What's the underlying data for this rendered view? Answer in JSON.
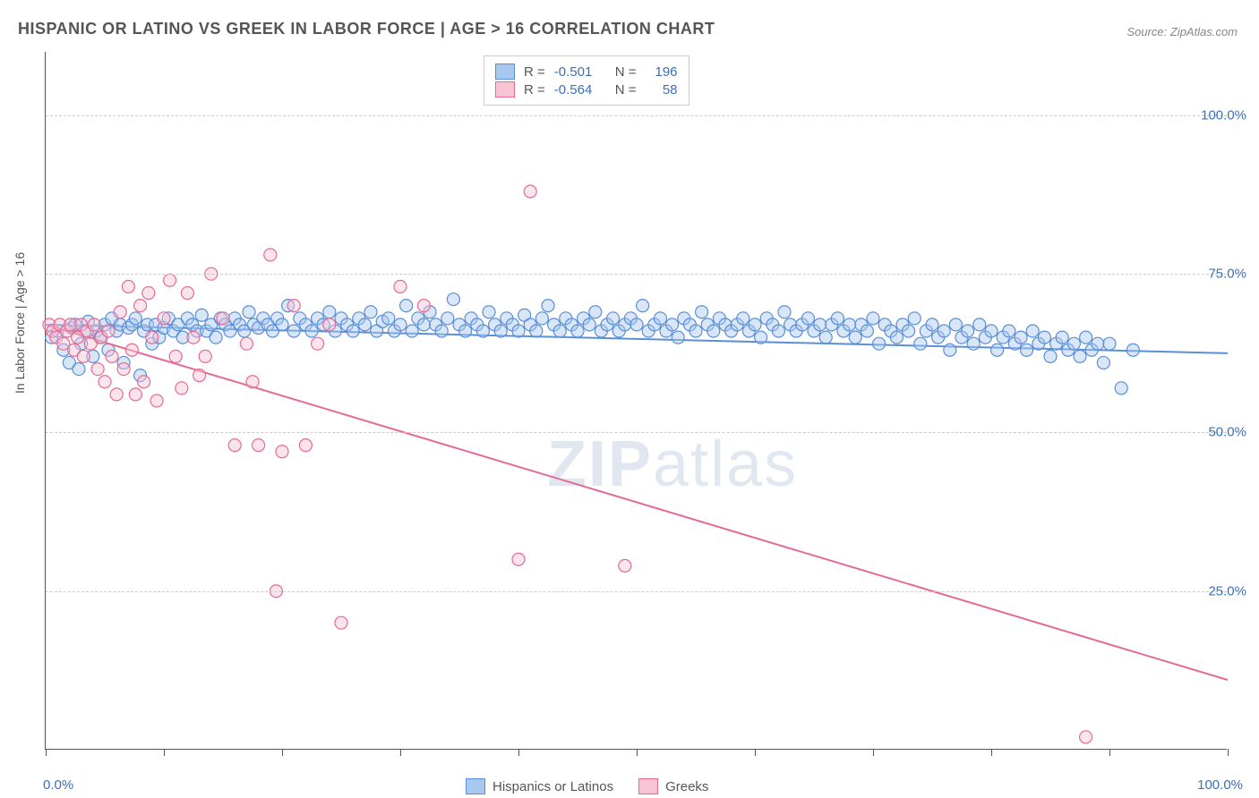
{
  "title": "HISPANIC OR LATINO VS GREEK IN LABOR FORCE | AGE > 16 CORRELATION CHART",
  "source": "Source: ZipAtlas.com",
  "ylabel": "In Labor Force | Age > 16",
  "watermark_bold": "ZIP",
  "watermark_rest": "atlas",
  "chart": {
    "type": "scatter-with-regression",
    "xlim": [
      0,
      100
    ],
    "ylim": [
      0,
      110
    ],
    "xtick_labels": {
      "0": "0.0%",
      "100": "100.0%"
    },
    "ytick_labels": {
      "25": "25.0%",
      "50": "50.0%",
      "75": "75.0%",
      "100": "100.0%"
    },
    "xtick_positions": [
      0,
      10,
      20,
      30,
      40,
      50,
      60,
      70,
      80,
      90,
      100
    ],
    "grid_y_positions": [
      25,
      50,
      75,
      100
    ],
    "grid_color": "#cccccc",
    "background_color": "#ffffff",
    "axis_color": "#555555",
    "marker_radius": 7,
    "marker_opacity": 0.45,
    "line_width": 2,
    "series": [
      {
        "name": "Hispanics or Latinos",
        "color_fill": "#a8c8f0",
        "color_stroke": "#5a8fd6",
        "R": "-0.501",
        "N": "196",
        "regression": {
          "x0": 0,
          "y0": 67,
          "x1": 100,
          "y1": 62.5
        },
        "points": [
          [
            0.5,
            65
          ],
          [
            1,
            66
          ],
          [
            1.5,
            63
          ],
          [
            2,
            61
          ],
          [
            2.2,
            66.5
          ],
          [
            2.5,
            67
          ],
          [
            2.8,
            60
          ],
          [
            3,
            64
          ],
          [
            3.3,
            66
          ],
          [
            3.6,
            67.5
          ],
          [
            4,
            62
          ],
          [
            4.3,
            66
          ],
          [
            4.6,
            65
          ],
          [
            5,
            67
          ],
          [
            5.3,
            63
          ],
          [
            5.6,
            68
          ],
          [
            6,
            66
          ],
          [
            6.3,
            67
          ],
          [
            6.6,
            61
          ],
          [
            7,
            66.5
          ],
          [
            7.3,
            67
          ],
          [
            7.6,
            68
          ],
          [
            8,
            59
          ],
          [
            8.3,
            66
          ],
          [
            8.6,
            67
          ],
          [
            9,
            64
          ],
          [
            9.3,
            67
          ],
          [
            9.6,
            65
          ],
          [
            10,
            66.5
          ],
          [
            10.4,
            68
          ],
          [
            10.8,
            66
          ],
          [
            11.2,
            67
          ],
          [
            11.6,
            65
          ],
          [
            12,
            68
          ],
          [
            12.4,
            67
          ],
          [
            12.8,
            66
          ],
          [
            13.2,
            68.5
          ],
          [
            13.6,
            66
          ],
          [
            14,
            67
          ],
          [
            14.4,
            65
          ],
          [
            14.8,
            68
          ],
          [
            15.2,
            67
          ],
          [
            15.6,
            66
          ],
          [
            16,
            68
          ],
          [
            16.4,
            67
          ],
          [
            16.8,
            66
          ],
          [
            17.2,
            69
          ],
          [
            17.6,
            67
          ],
          [
            18,
            66.5
          ],
          [
            18.4,
            68
          ],
          [
            18.8,
            67
          ],
          [
            19.2,
            66
          ],
          [
            19.6,
            68
          ],
          [
            20,
            67
          ],
          [
            20.5,
            70
          ],
          [
            21,
            66
          ],
          [
            21.5,
            68
          ],
          [
            22,
            67
          ],
          [
            22.5,
            66
          ],
          [
            23,
            68
          ],
          [
            23.5,
            67
          ],
          [
            24,
            69
          ],
          [
            24.5,
            66
          ],
          [
            25,
            68
          ],
          [
            25.5,
            67
          ],
          [
            26,
            66
          ],
          [
            26.5,
            68
          ],
          [
            27,
            67
          ],
          [
            27.5,
            69
          ],
          [
            28,
            66
          ],
          [
            28.5,
            67.5
          ],
          [
            29,
            68
          ],
          [
            29.5,
            66
          ],
          [
            30,
            67
          ],
          [
            30.5,
            70
          ],
          [
            31,
            66
          ],
          [
            31.5,
            68
          ],
          [
            32,
            67
          ],
          [
            32.5,
            69
          ],
          [
            33,
            67
          ],
          [
            33.5,
            66
          ],
          [
            34,
            68
          ],
          [
            34.5,
            71
          ],
          [
            35,
            67
          ],
          [
            35.5,
            66
          ],
          [
            36,
            68
          ],
          [
            36.5,
            67
          ],
          [
            37,
            66
          ],
          [
            37.5,
            69
          ],
          [
            38,
            67
          ],
          [
            38.5,
            66
          ],
          [
            39,
            68
          ],
          [
            39.5,
            67
          ],
          [
            40,
            66
          ],
          [
            40.5,
            68.5
          ],
          [
            41,
            67
          ],
          [
            41.5,
            66
          ],
          [
            42,
            68
          ],
          [
            42.5,
            70
          ],
          [
            43,
            67
          ],
          [
            43.5,
            66
          ],
          [
            44,
            68
          ],
          [
            44.5,
            67
          ],
          [
            45,
            66
          ],
          [
            45.5,
            68
          ],
          [
            46,
            67
          ],
          [
            46.5,
            69
          ],
          [
            47,
            66
          ],
          [
            47.5,
            67
          ],
          [
            48,
            68
          ],
          [
            48.5,
            66
          ],
          [
            49,
            67
          ],
          [
            49.5,
            68
          ],
          [
            50,
            67
          ],
          [
            50.5,
            70
          ],
          [
            51,
            66
          ],
          [
            51.5,
            67
          ],
          [
            52,
            68
          ],
          [
            52.5,
            66
          ],
          [
            53,
            67
          ],
          [
            53.5,
            65
          ],
          [
            54,
            68
          ],
          [
            54.5,
            67
          ],
          [
            55,
            66
          ],
          [
            55.5,
            69
          ],
          [
            56,
            67
          ],
          [
            56.5,
            66
          ],
          [
            57,
            68
          ],
          [
            57.5,
            67
          ],
          [
            58,
            66
          ],
          [
            58.5,
            67
          ],
          [
            59,
            68
          ],
          [
            59.5,
            66
          ],
          [
            60,
            67
          ],
          [
            60.5,
            65
          ],
          [
            61,
            68
          ],
          [
            61.5,
            67
          ],
          [
            62,
            66
          ],
          [
            62.5,
            69
          ],
          [
            63,
            67
          ],
          [
            63.5,
            66
          ],
          [
            64,
            67
          ],
          [
            64.5,
            68
          ],
          [
            65,
            66
          ],
          [
            65.5,
            67
          ],
          [
            66,
            65
          ],
          [
            66.5,
            67
          ],
          [
            67,
            68
          ],
          [
            67.5,
            66
          ],
          [
            68,
            67
          ],
          [
            68.5,
            65
          ],
          [
            69,
            67
          ],
          [
            69.5,
            66
          ],
          [
            70,
            68
          ],
          [
            70.5,
            64
          ],
          [
            71,
            67
          ],
          [
            71.5,
            66
          ],
          [
            72,
            65
          ],
          [
            72.5,
            67
          ],
          [
            73,
            66
          ],
          [
            73.5,
            68
          ],
          [
            74,
            64
          ],
          [
            74.5,
            66
          ],
          [
            75,
            67
          ],
          [
            75.5,
            65
          ],
          [
            76,
            66
          ],
          [
            76.5,
            63
          ],
          [
            77,
            67
          ],
          [
            77.5,
            65
          ],
          [
            78,
            66
          ],
          [
            78.5,
            64
          ],
          [
            79,
            67
          ],
          [
            79.5,
            65
          ],
          [
            80,
            66
          ],
          [
            80.5,
            63
          ],
          [
            81,
            65
          ],
          [
            81.5,
            66
          ],
          [
            82,
            64
          ],
          [
            82.5,
            65
          ],
          [
            83,
            63
          ],
          [
            83.5,
            66
          ],
          [
            84,
            64
          ],
          [
            84.5,
            65
          ],
          [
            85,
            62
          ],
          [
            85.5,
            64
          ],
          [
            86,
            65
          ],
          [
            86.5,
            63
          ],
          [
            87,
            64
          ],
          [
            87.5,
            62
          ],
          [
            88,
            65
          ],
          [
            88.5,
            63
          ],
          [
            89,
            64
          ],
          [
            89.5,
            61
          ],
          [
            90,
            64
          ],
          [
            91,
            57
          ],
          [
            92,
            63
          ]
        ]
      },
      {
        "name": "Greeks",
        "color_fill": "#f8c4d4",
        "color_stroke": "#e56b94",
        "R": "-0.564",
        "N": "58",
        "regression": {
          "x0": 0,
          "y0": 67,
          "x1": 100,
          "y1": 11
        },
        "points": [
          [
            0.3,
            67
          ],
          [
            0.6,
            66
          ],
          [
            0.9,
            65
          ],
          [
            1.2,
            67
          ],
          [
            1.5,
            64
          ],
          [
            1.8,
            66
          ],
          [
            2.1,
            67
          ],
          [
            2.4,
            63
          ],
          [
            2.7,
            65
          ],
          [
            3,
            67
          ],
          [
            3.2,
            62
          ],
          [
            3.5,
            66
          ],
          [
            3.8,
            64
          ],
          [
            4.1,
            67
          ],
          [
            4.4,
            60
          ],
          [
            4.7,
            65
          ],
          [
            5,
            58
          ],
          [
            5.3,
            66
          ],
          [
            5.6,
            62
          ],
          [
            6,
            56
          ],
          [
            6.3,
            69
          ],
          [
            6.6,
            60
          ],
          [
            7,
            73
          ],
          [
            7.3,
            63
          ],
          [
            7.6,
            56
          ],
          [
            8,
            70
          ],
          [
            8.3,
            58
          ],
          [
            8.7,
            72
          ],
          [
            9,
            65
          ],
          [
            9.4,
            55
          ],
          [
            10,
            68
          ],
          [
            10.5,
            74
          ],
          [
            11,
            62
          ],
          [
            11.5,
            57
          ],
          [
            12,
            72
          ],
          [
            12.5,
            65
          ],
          [
            13,
            59
          ],
          [
            13.5,
            62
          ],
          [
            14,
            75
          ],
          [
            15,
            68
          ],
          [
            16,
            48
          ],
          [
            17,
            64
          ],
          [
            17.5,
            58
          ],
          [
            18,
            48
          ],
          [
            19,
            78
          ],
          [
            19.5,
            25
          ],
          [
            20,
            47
          ],
          [
            21,
            70
          ],
          [
            22,
            48
          ],
          [
            23,
            64
          ],
          [
            24,
            67
          ],
          [
            25,
            20
          ],
          [
            30,
            73
          ],
          [
            32,
            70
          ],
          [
            40,
            30
          ],
          [
            41,
            88
          ],
          [
            49,
            29
          ],
          [
            88,
            2
          ]
        ]
      }
    ]
  },
  "legend_bottom": [
    {
      "label": "Hispanics or Latinos",
      "fill": "#a8c8f0",
      "stroke": "#5a8fd6"
    },
    {
      "label": "Greeks",
      "fill": "#f8c4d4",
      "stroke": "#e56b94"
    }
  ]
}
